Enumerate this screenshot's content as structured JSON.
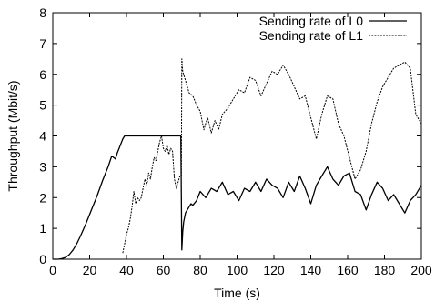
{
  "chart_data": {
    "type": "line",
    "title": "",
    "xlabel": "Time (s)",
    "ylabel": "Throughput (Mbit/s)",
    "xlim": [
      0,
      200
    ],
    "ylim": [
      0,
      8
    ],
    "x_ticks": [
      0,
      20,
      40,
      60,
      80,
      100,
      120,
      140,
      160,
      180,
      200
    ],
    "y_ticks": [
      0,
      1,
      2,
      3,
      4,
      5,
      6,
      7,
      8
    ],
    "grid": false,
    "legend_position": "top-right",
    "series": [
      {
        "name": "Sending rate of L0",
        "style": "solid",
        "color": "#000000",
        "x": [
          0,
          3,
          5,
          7,
          9,
          11,
          13,
          15,
          18,
          21,
          24,
          27,
          30,
          32,
          34,
          35,
          36,
          37,
          38,
          39,
          40,
          45,
          50,
          55,
          60,
          65,
          69.5,
          70,
          70.5,
          71,
          72,
          73,
          74,
          75,
          76,
          78,
          80,
          83,
          86,
          89,
          92,
          95,
          98,
          101,
          104,
          107,
          110,
          113,
          116,
          119,
          122,
          125,
          128,
          131,
          134,
          137,
          140,
          143,
          146,
          149,
          152,
          155,
          158,
          161,
          164,
          167,
          170,
          173,
          176,
          179,
          182,
          185,
          188,
          191,
          194,
          197,
          200
        ],
        "y": [
          0,
          0,
          0.02,
          0.06,
          0.15,
          0.3,
          0.5,
          0.75,
          1.15,
          1.6,
          2.05,
          2.55,
          3.0,
          3.35,
          3.25,
          3.45,
          3.6,
          3.75,
          3.9,
          4.0,
          4.0,
          4.0,
          4.0,
          4.0,
          4.0,
          4.0,
          4.0,
          0.3,
          0.9,
          1.2,
          1.5,
          1.6,
          1.7,
          1.8,
          1.75,
          1.9,
          2.2,
          2.0,
          2.3,
          2.2,
          2.5,
          2.1,
          2.2,
          1.9,
          2.3,
          2.2,
          2.5,
          2.2,
          2.6,
          2.4,
          2.3,
          2.0,
          2.5,
          2.2,
          2.7,
          2.3,
          1.8,
          2.4,
          2.7,
          3.0,
          2.6,
          2.4,
          2.7,
          2.8,
          2.2,
          2.1,
          1.6,
          2.1,
          2.5,
          2.3,
          1.9,
          2.1,
          1.8,
          1.5,
          1.9,
          2.1,
          2.4
        ]
      },
      {
        "name": "Sending rate of L1",
        "style": "dashed",
        "color": "#000000",
        "x": [
          38,
          39,
          40,
          41,
          42,
          43,
          44,
          45,
          46,
          47,
          48,
          49,
          50,
          51,
          52,
          53,
          54,
          55,
          56,
          57,
          58,
          59,
          60,
          61,
          62,
          63,
          64,
          65,
          66,
          67,
          68,
          69,
          69.8,
          70,
          70.5,
          71,
          72,
          73,
          74,
          76,
          78,
          80,
          82,
          84,
          86,
          88,
          90,
          92,
          95,
          98,
          101,
          104,
          107,
          110,
          113,
          116,
          119,
          122,
          125,
          128,
          131,
          134,
          137,
          140,
          143,
          146,
          149,
          152,
          155,
          158,
          161,
          164,
          167,
          170,
          173,
          176,
          179,
          182,
          185,
          188,
          191,
          194,
          197,
          200
        ],
        "y": [
          0.2,
          0.5,
          0.8,
          1.0,
          1.3,
          1.7,
          2.2,
          1.8,
          2.0,
          1.9,
          2.0,
          2.3,
          2.6,
          2.4,
          2.8,
          2.6,
          3.0,
          3.3,
          3.2,
          3.5,
          3.8,
          4.0,
          3.6,
          3.5,
          3.7,
          3.4,
          3.6,
          3.5,
          2.6,
          2.3,
          2.5,
          2.7,
          2.7,
          6.5,
          6.1,
          6.0,
          5.8,
          5.6,
          5.4,
          5.3,
          5.0,
          4.8,
          4.2,
          4.6,
          4.1,
          4.5,
          4.2,
          4.7,
          4.9,
          5.2,
          5.5,
          5.4,
          5.9,
          5.8,
          5.3,
          5.7,
          6.1,
          6.0,
          6.3,
          6.0,
          5.6,
          5.2,
          5.3,
          4.6,
          3.9,
          4.7,
          5.3,
          5.2,
          4.4,
          4.0,
          3.3,
          2.6,
          2.9,
          3.5,
          4.4,
          5.1,
          5.6,
          5.9,
          6.2,
          6.3,
          6.4,
          6.2,
          4.7,
          4.4
        ]
      }
    ]
  }
}
